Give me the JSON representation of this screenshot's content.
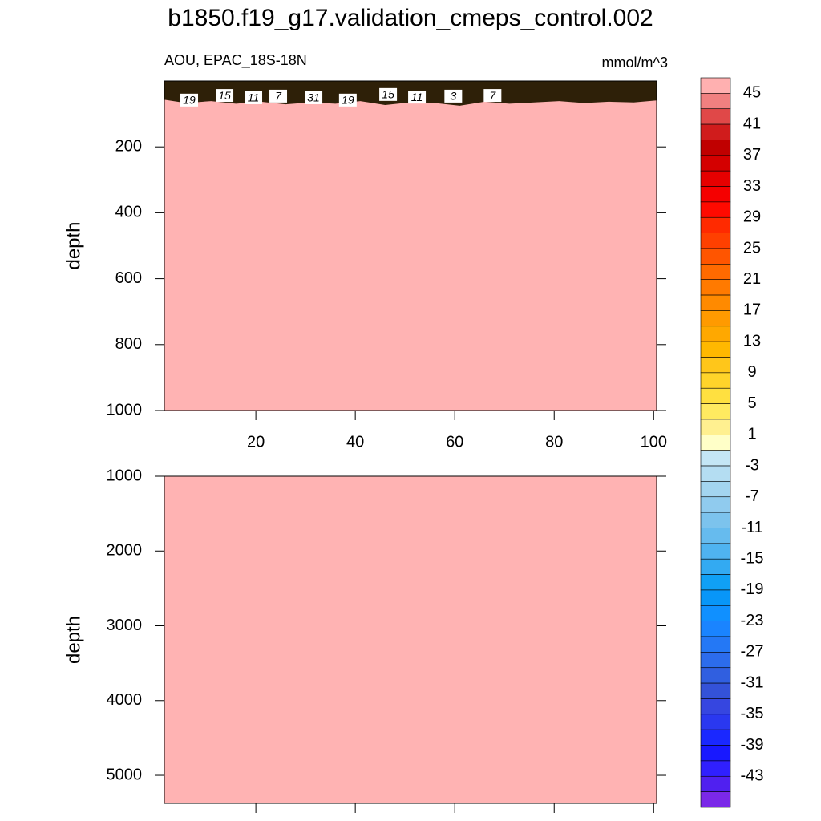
{
  "title": "b1850.f19_g17.validation_cmeps_control.002",
  "chart_data": [
    {
      "type": "contour",
      "subtitle": "AOU, EPAC_18S-18N",
      "units": "mmol/m^3",
      "ylabel": "depth",
      "xlim": [
        1.6,
        100.6
      ],
      "xticks": [
        20,
        40,
        60,
        80,
        100
      ],
      "xtick_labels": true,
      "ylim": [
        0,
        1000
      ],
      "yticks": [
        200,
        400,
        600,
        800,
        1000
      ],
      "reverse_y": true,
      "fill_color": "#ffb3b3",
      "surface": {
        "x": [
          1.6,
          6,
          11,
          16,
          21,
          26,
          31,
          36,
          41,
          46,
          51,
          56,
          61,
          66,
          71,
          76,
          81,
          86,
          91,
          96,
          100.6
        ],
        "depth": [
          62,
          72,
          66,
          74,
          68,
          76,
          70,
          74,
          66,
          78,
          70,
          72,
          80,
          68,
          74,
          70,
          66,
          72,
          68,
          70,
          64
        ]
      },
      "contour_labels": [
        {
          "x": 6.6,
          "depth": 58,
          "value": 19
        },
        {
          "x": 13.7,
          "depth": 44,
          "value": 15
        },
        {
          "x": 19.5,
          "depth": 51,
          "value": 11
        },
        {
          "x": 24.5,
          "depth": 46,
          "value": 7
        },
        {
          "x": 31.6,
          "depth": 51,
          "value": 31
        },
        {
          "x": 38.5,
          "depth": 58,
          "value": 19
        },
        {
          "x": 46.6,
          "depth": 41,
          "value": 15
        },
        {
          "x": 52.4,
          "depth": 49,
          "value": 11
        },
        {
          "x": 59.7,
          "depth": 46,
          "value": 3
        },
        {
          "x": 67.6,
          "depth": 44,
          "value": 7
        }
      ]
    },
    {
      "type": "contour",
      "ylabel": "depth",
      "xlim": [
        1.6,
        100.6
      ],
      "xticks": [
        20,
        40,
        60,
        80,
        100
      ],
      "xtick_labels": false,
      "ylim": [
        1000,
        5375
      ],
      "yticks": [
        1000,
        2000,
        3000,
        4000,
        5000
      ],
      "reverse_y": true,
      "fill_color": "#ffb3b3"
    }
  ],
  "colorbar": {
    "lim": [
      -47,
      47
    ],
    "ticks": [
      45,
      41,
      37,
      33,
      29,
      25,
      21,
      17,
      13,
      9,
      5,
      1,
      -3,
      -7,
      -11,
      -15,
      -19,
      -23,
      -27,
      -31,
      -35,
      -39,
      -43
    ],
    "colors": [
      "#ffb0b0",
      "#f08080",
      "#e04848",
      "#d01c1c",
      "#c00000",
      "#d40000",
      "#e60000",
      "#f50000",
      "#ff0a00",
      "#ff2a00",
      "#ff4000",
      "#ff5500",
      "#ff6a00",
      "#ff7a00",
      "#ff8a00",
      "#ff9a00",
      "#ffa800",
      "#ffb800",
      "#ffc61a",
      "#ffd42a",
      "#ffe040",
      "#ffea60",
      "#fff090",
      "#ffffc8",
      "#c4e6f5",
      "#b4ddf2",
      "#a3d5f0",
      "#90cbee",
      "#7cc3ed",
      "#66bbee",
      "#4fb3f0",
      "#33aaf2",
      "#10a0f5",
      "#0896f8",
      "#1090ff",
      "#1a84ff",
      "#2478f5",
      "#2c6cec",
      "#305fe0",
      "#3452d8",
      "#3646e0",
      "#2a38f0",
      "#1a28ff",
      "#1818ff",
      "#3020ff",
      "#5020f0",
      "#7a28e8"
    ]
  }
}
